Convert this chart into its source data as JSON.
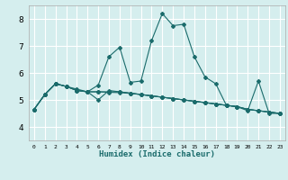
{
  "title": "",
  "xlabel": "Humidex (Indice chaleur)",
  "ylabel": "",
  "background_color": "#d5eeee",
  "grid_color": "#ffffff",
  "line_color": "#1a6b6b",
  "xlim": [
    -0.5,
    23.5
  ],
  "ylim": [
    3.5,
    8.5
  ],
  "yticks": [
    4,
    5,
    6,
    7,
    8
  ],
  "xticks": [
    0,
    1,
    2,
    3,
    4,
    5,
    6,
    7,
    8,
    9,
    10,
    11,
    12,
    13,
    14,
    15,
    16,
    17,
    18,
    19,
    20,
    21,
    22,
    23
  ],
  "xtick_labels": [
    "0",
    "1",
    "2",
    "3",
    "4",
    "5",
    "6",
    "7",
    "8",
    "9",
    "10",
    "11",
    "12",
    "13",
    "14",
    "15",
    "16",
    "17",
    "18",
    "19",
    "20",
    "21",
    "22",
    "23"
  ],
  "series": [
    [
      4.65,
      5.2,
      5.6,
      5.5,
      5.4,
      5.3,
      5.55,
      6.6,
      6.95,
      5.65,
      5.7,
      7.2,
      8.2,
      7.75,
      7.8,
      6.6,
      5.85,
      5.6,
      4.8,
      4.75,
      4.6,
      5.7,
      4.5,
      4.5
    ],
    [
      4.65,
      5.2,
      5.6,
      5.5,
      5.35,
      5.3,
      5.0,
      5.35,
      5.3,
      5.25,
      5.2,
      5.15,
      5.1,
      5.05,
      5.0,
      4.95,
      4.9,
      4.85,
      4.8,
      4.75,
      4.65,
      4.6,
      4.55,
      4.5
    ],
    [
      4.65,
      5.2,
      5.6,
      5.5,
      5.35,
      5.3,
      5.3,
      5.3,
      5.3,
      5.25,
      5.2,
      5.15,
      5.1,
      5.05,
      5.0,
      4.95,
      4.9,
      4.85,
      4.8,
      4.75,
      4.65,
      4.6,
      4.55,
      4.5
    ],
    [
      4.65,
      5.2,
      5.6,
      5.5,
      5.35,
      5.3,
      5.3,
      5.28,
      5.27,
      5.24,
      5.2,
      5.15,
      5.1,
      5.05,
      5.0,
      4.95,
      4.9,
      4.85,
      4.8,
      4.75,
      4.65,
      4.6,
      4.55,
      4.5
    ]
  ]
}
